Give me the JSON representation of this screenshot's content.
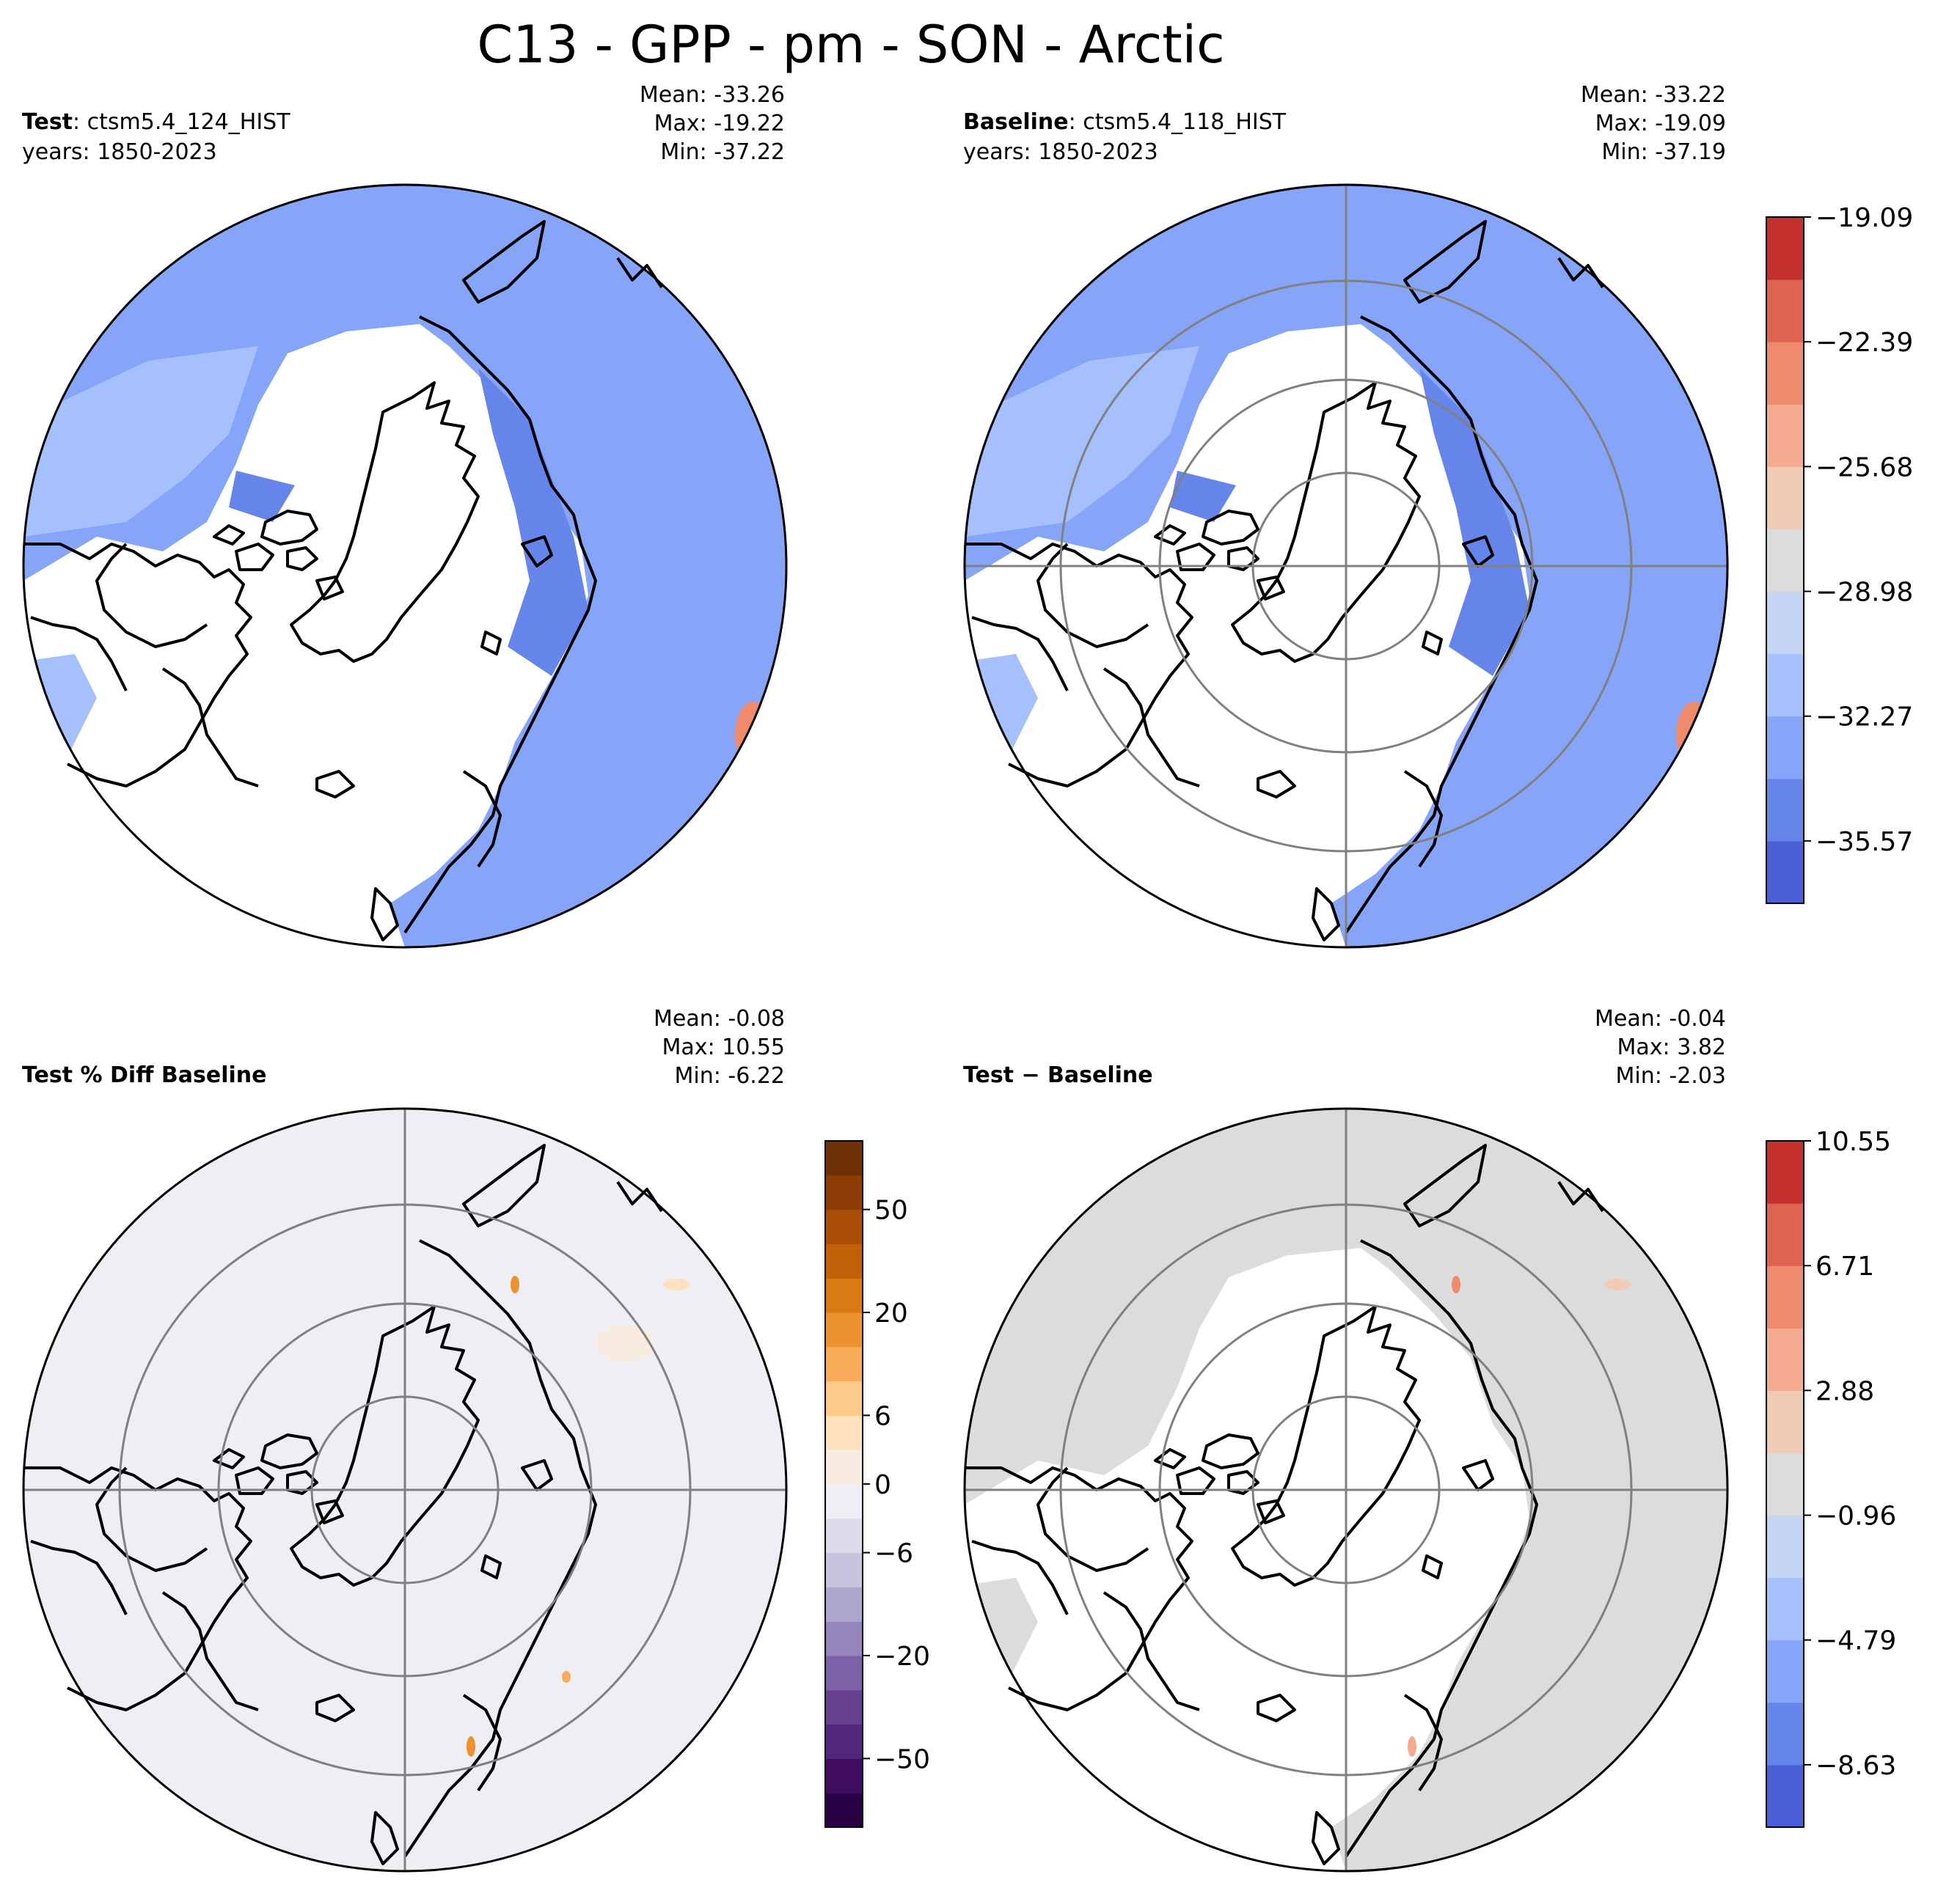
{
  "figure": {
    "title": "C13 - GPP - pm - SON - Arctic"
  },
  "panels": {
    "test": {
      "label_bold": "Test",
      "label_rest": ": ctsm5.4_124_HIST",
      "years": "years: 1850-2023",
      "stats": {
        "mean": "Mean: -33.26",
        "max": "Max: -19.22",
        "min": "Min: -37.22"
      }
    },
    "baseline": {
      "label_bold": "Baseline",
      "label_rest": ": ctsm5.4_118_HIST",
      "years": "years: 1850-2023",
      "stats": {
        "mean": "Mean: -33.22",
        "max": "Max: -19.09",
        "min": "Min: -37.19"
      }
    },
    "pctdiff": {
      "label_bold": "Test % Diff Baseline",
      "stats": {
        "mean": "Mean: -0.08",
        "max": "Max: 10.55",
        "min": "Min: -6.22"
      }
    },
    "diff": {
      "label_bold": "Test − Baseline",
      "stats": {
        "mean": "Mean: -0.04",
        "max": "Max:  3.82",
        "min": "Min: -2.03"
      }
    }
  },
  "colorbars": {
    "top": {
      "colors": [
        "#4a5fd5",
        "#6585ea",
        "#86a5f8",
        "#a5c0fd",
        "#c4d5f3",
        "#dcdcdc",
        "#f2cbb7",
        "#f5ab8f",
        "#ef8a6a",
        "#de6450",
        "#c5302d"
      ],
      "ticks": [
        "−35.57",
        "−32.27",
        "−28.98",
        "−25.68",
        "−22.39",
        "−19.09"
      ],
      "tick_values": [
        1,
        3,
        5,
        7,
        9,
        11
      ]
    },
    "pct": {
      "colors": [
        "#2a0044",
        "#3f0c60",
        "#52267a",
        "#66418f",
        "#7b62a6",
        "#9485bb",
        "#ada6cd",
        "#c7c4dd",
        "#dcdbe9",
        "#eeeef4",
        "#f8ebe0",
        "#fde1be",
        "#fdca89",
        "#f9ad5a",
        "#ec922f",
        "#da7a14",
        "#c2600a",
        "#a94d08",
        "#8c3e06",
        "#6e3005"
      ],
      "ticks": [
        "−50",
        "−20",
        "−6",
        "0",
        "6",
        "20",
        "50"
      ],
      "tick_values": [
        2,
        5,
        8,
        10,
        12,
        15,
        18
      ]
    },
    "diff": {
      "colors": [
        "#4a5fd5",
        "#6585ea",
        "#86a5f8",
        "#a5c0fd",
        "#c4d5f3",
        "#dcdcdc",
        "#f2cbb7",
        "#f5ab8f",
        "#ef8a6a",
        "#de6450",
        "#c5302d"
      ],
      "ticks": [
        "−8.63",
        "−4.79",
        "−0.96",
        "2.88",
        "6.71",
        "10.55"
      ],
      "tick_values": [
        1,
        3,
        5,
        7,
        9,
        11
      ]
    }
  },
  "map_style": {
    "fill_test_outer": "#86a5f8",
    "fill_test_light": "#a5c0fd",
    "fill_test_dark": "#6585ea",
    "fill_pct": "#eeeef4",
    "fill_diff": "#dcdcdc",
    "warm_spot": "#ef8a6a",
    "grid_color": "#808080"
  }
}
